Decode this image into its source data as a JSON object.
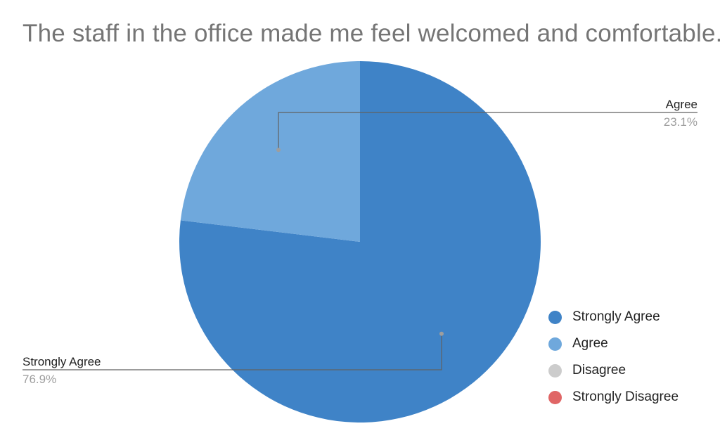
{
  "chart_data": {
    "type": "pie",
    "title": "The staff in the office made me feel welcomed and comfortable.",
    "legend_position": "bottom-right",
    "slices": [
      {
        "label": "Strongly Agree",
        "value": 76.9,
        "value_label": "76.9%",
        "color": "#3F83C7"
      },
      {
        "label": "Agree",
        "value": 23.1,
        "value_label": "23.1%",
        "color": "#6FA8DC"
      },
      {
        "label": "Disagree",
        "value": 0,
        "value_label": "",
        "color": "#CCCCCC"
      },
      {
        "label": "Strongly Disagree",
        "value": 0,
        "value_label": "",
        "color": "#E06666"
      }
    ]
  }
}
